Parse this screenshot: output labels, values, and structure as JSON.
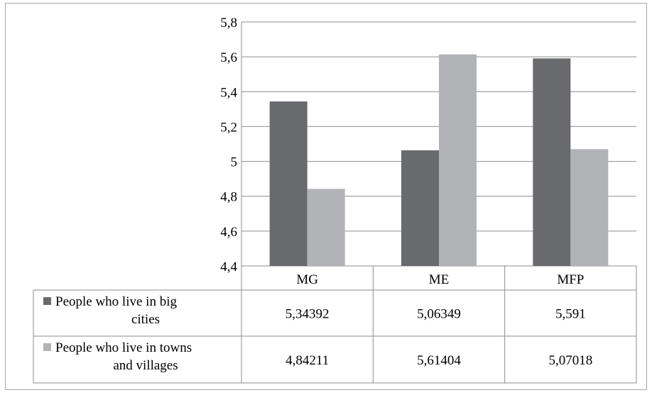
{
  "chart_data": {
    "type": "bar",
    "categories": [
      "MG",
      "ME",
      "MFP"
    ],
    "series": [
      {
        "name": "People who live in big cities",
        "label_lines": [
          "People who live in big",
          "cities"
        ],
        "values": [
          5.34392,
          5.06349,
          5.591
        ],
        "value_labels": [
          "5,34392",
          "5,06349",
          "5,591"
        ],
        "color": "#696a6e"
      },
      {
        "name": "People who live in towns and villages",
        "label_lines": [
          "People who live in towns",
          "and villages"
        ],
        "values": [
          4.84211,
          5.61404,
          5.07018
        ],
        "value_labels": [
          "4,84211",
          "5,61404",
          "5,07018"
        ],
        "color": "#b2b3b7"
      }
    ],
    "ylim": [
      4.4,
      5.8
    ],
    "yticks": [
      4.4,
      4.6,
      4.8,
      5.0,
      5.2,
      5.4,
      5.6,
      5.8
    ],
    "ytick_labels": [
      "4,4",
      "4,6",
      "4,8",
      "5",
      "5,2",
      "5,4",
      "5,6",
      "5,8"
    ],
    "grid": true,
    "legend": "data table below the chart",
    "title": "",
    "xlabel": "",
    "ylabel": ""
  }
}
